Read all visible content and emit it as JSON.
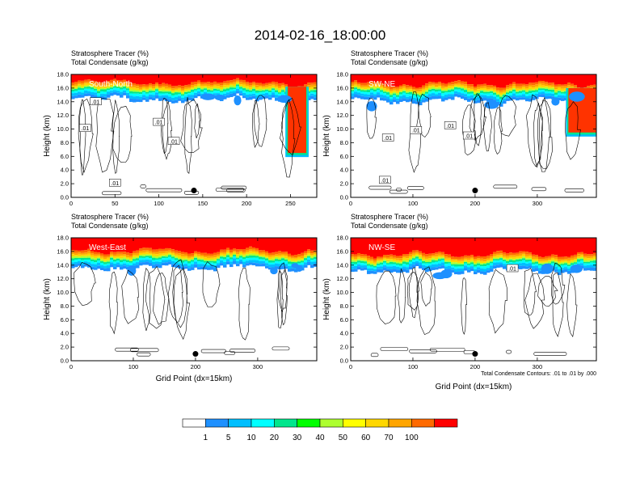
{
  "figure": {
    "title": "2014-02-16_18:00:00",
    "footnote": "Total Condensate Contours: .01 to .01 by .000"
  },
  "colorbar": {
    "labels": [
      "1",
      "5",
      "10",
      "20",
      "30",
      "40",
      "50",
      "60",
      "70",
      "100"
    ],
    "colors": [
      "#ffffff",
      "#1e90ff",
      "#00bfff",
      "#00ffff",
      "#00e68c",
      "#00ff00",
      "#adff2f",
      "#ffff00",
      "#ffd700",
      "#ffa500",
      "#ff6a00",
      "#ff0000"
    ]
  },
  "chart_data": [
    {
      "type": "heatmap",
      "id": "south-north",
      "title_line1": "Stratosphere Tracer   (%)",
      "title_line2": "Total Condensate   (g/kg)",
      "region_label": "South-North",
      "ylabel": "Height (km)",
      "xlabel": "",
      "xlim": [
        0,
        280
      ],
      "ylim": [
        0,
        18
      ],
      "xticks": [
        "0",
        "50",
        "100",
        "150",
        "200",
        "250"
      ],
      "xtick_values": [
        0,
        50,
        100,
        150,
        200,
        250
      ],
      "yticks": [
        "0.0",
        "2.0",
        "4.0",
        "6.0",
        "8.0",
        "10.0",
        "12.0",
        "14.0",
        "16.0",
        "18.0"
      ],
      "ytick_values": [
        0,
        2,
        4,
        6,
        8,
        10,
        12,
        14,
        16,
        18
      ],
      "contour_labels": [
        {
          "text": ".01",
          "x": 28,
          "y": 14.0
        },
        {
          "text": ".01",
          "x": 16,
          "y": 10.1
        },
        {
          "text": ".01",
          "x": 100,
          "y": 11.0
        },
        {
          "text": ".01",
          "x": 117,
          "y": 8.2
        },
        {
          "text": ".01",
          "x": 50,
          "y": 2.1
        }
      ],
      "marker": {
        "x": 140,
        "y": 1.0
      },
      "tropopause_km": 16.2,
      "intrusion": {
        "x0": 247,
        "x1": 268,
        "bottom_km": 6.5
      }
    },
    {
      "type": "heatmap",
      "id": "sw-ne",
      "title_line1": "Stratosphere Tracer   (%)",
      "title_line2": "Total Condensate   (g/kg)",
      "region_label": "SW-NE",
      "ylabel": "Height (km)",
      "xlabel": "",
      "xlim": [
        0,
        395
      ],
      "ylim": [
        0,
        18
      ],
      "xticks": [
        "0",
        "100",
        "200",
        "300"
      ],
      "xtick_values": [
        0,
        100,
        200,
        300
      ],
      "yticks": [
        "0.0",
        "2.0",
        "4.0",
        "6.0",
        "8.0",
        "10.0",
        "12.0",
        "14.0",
        "16.0",
        "18.0"
      ],
      "ytick_values": [
        0,
        2,
        4,
        6,
        8,
        10,
        12,
        14,
        16,
        18
      ],
      "contour_labels": [
        {
          "text": ".01",
          "x": 60,
          "y": 8.7
        },
        {
          "text": ".01",
          "x": 105,
          "y": 9.8
        },
        {
          "text": ".01",
          "x": 160,
          "y": 10.5
        },
        {
          "text": ".01",
          "x": 190,
          "y": 9.0
        },
        {
          "text": ".01",
          "x": 55,
          "y": 2.5
        }
      ],
      "marker": {
        "x": 200,
        "y": 1.0
      },
      "tropopause_km": 16.0,
      "intrusion": {
        "x0": 350,
        "x1": 395,
        "bottom_km": 9.5
      }
    },
    {
      "type": "heatmap",
      "id": "west-east",
      "title_line1": "Stratosphere Tracer   (%)",
      "title_line2": "Total Condensate   (g/kg)",
      "region_label": "West-East",
      "ylabel": "Height (km)",
      "xlabel": "Grid Point (dx=15km)",
      "xlim": [
        0,
        395
      ],
      "ylim": [
        0,
        18
      ],
      "xticks": [
        "0",
        "100",
        "200",
        "300"
      ],
      "xtick_values": [
        0,
        100,
        200,
        300
      ],
      "yticks": [
        "0.0",
        "2.0",
        "4.0",
        "6.0",
        "8.0",
        "10.0",
        "12.0",
        "14.0",
        "16.0",
        "18.0"
      ],
      "ytick_values": [
        0,
        2,
        4,
        6,
        8,
        10,
        12,
        14,
        16,
        18
      ],
      "contour_labels": [],
      "marker": {
        "x": 200,
        "y": 1.0
      },
      "tropopause_km": 15.5,
      "intrusion": null
    },
    {
      "type": "heatmap",
      "id": "nw-se",
      "title_line1": "Stratosphere Tracer   (%)",
      "title_line2": "Total Condensate   (g/kg)",
      "region_label": "NW-SE",
      "ylabel": "Height (km)",
      "xlabel": "Grid Point (dx=15km)",
      "xlim": [
        0,
        395
      ],
      "ylim": [
        0,
        18
      ],
      "xticks": [
        "0",
        "100",
        "200",
        "300"
      ],
      "xtick_values": [
        0,
        100,
        200,
        300
      ],
      "yticks": [
        "0.0",
        "2.0",
        "4.0",
        "6.0",
        "8.0",
        "10.0",
        "12.0",
        "14.0",
        "16.0",
        "18.0"
      ],
      "ytick_values": [
        0,
        2,
        4,
        6,
        8,
        10,
        12,
        14,
        16,
        18
      ],
      "contour_labels": [
        {
          "text": ".01",
          "x": 260,
          "y": 13.5
        }
      ],
      "marker": {
        "x": 200,
        "y": 1.0
      },
      "tropopause_km": 15.0,
      "intrusion": null
    }
  ]
}
